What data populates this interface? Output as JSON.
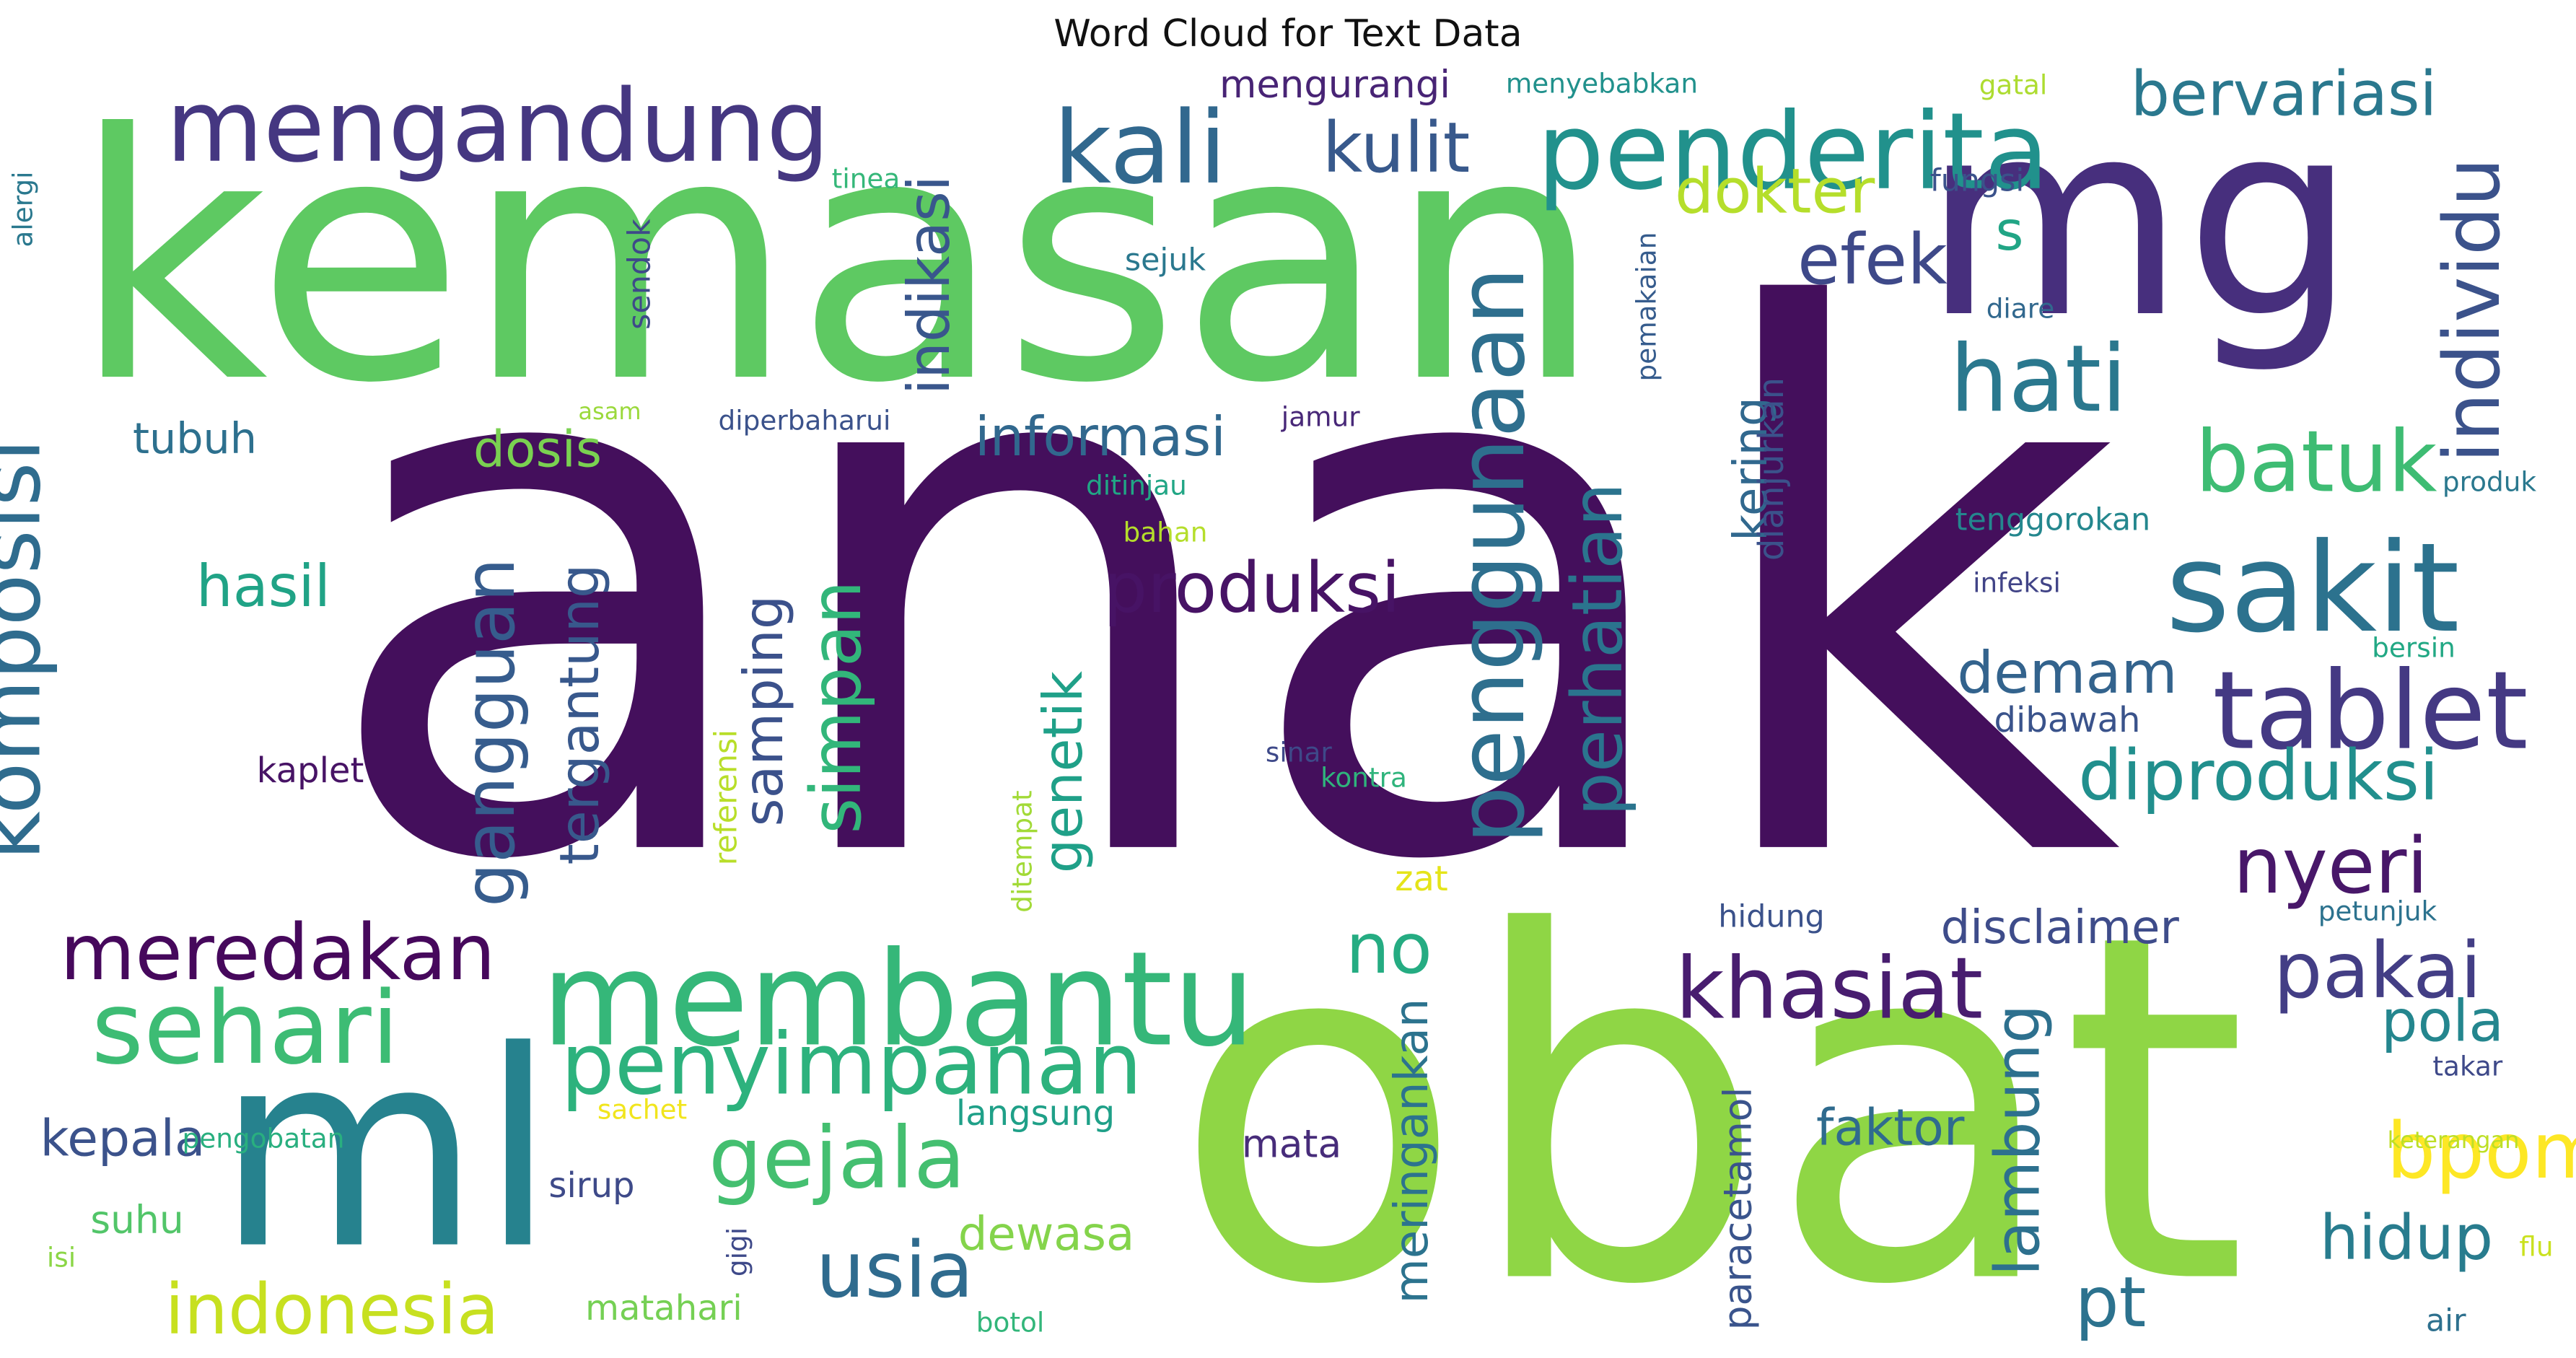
{
  "chart_data": {
    "type": "wordcloud",
    "title": "Word Cloud for Text Data",
    "palette": "viridis",
    "words": [
      {
        "text": "anak",
        "color": "#440f5c"
      },
      {
        "text": "obat",
        "color": "#8fd645"
      },
      {
        "text": "kemasan",
        "color": "#5ec962"
      },
      {
        "text": "mg",
        "color": "#472f7d"
      },
      {
        "text": "ml",
        "color": "#26828e"
      },
      {
        "text": "membantu",
        "color": "#35b779"
      },
      {
        "text": "mengandung",
        "color": "#453781"
      },
      {
        "text": "penderita",
        "color": "#21918c"
      },
      {
        "text": "sakit",
        "color": "#2c728e"
      },
      {
        "text": "kali",
        "color": "#31688e"
      },
      {
        "text": "tablet",
        "color": "#443983"
      },
      {
        "text": "hati",
        "color": "#2a788e"
      },
      {
        "text": "sehari",
        "color": "#3dbc74"
      },
      {
        "text": "khasiat",
        "color": "#481d6f"
      },
      {
        "text": "gejala",
        "color": "#44bf70"
      },
      {
        "text": "penyimpanan",
        "color": "#2db27d"
      },
      {
        "text": "batuk",
        "color": "#3ebc73"
      },
      {
        "text": "nyeri",
        "color": "#481769"
      },
      {
        "text": "meredakan",
        "color": "#46085c"
      },
      {
        "text": "usia",
        "color": "#2f6b8e"
      },
      {
        "text": "indonesia",
        "color": "#c7e020"
      },
      {
        "text": "bpom",
        "color": "#fde725"
      },
      {
        "text": "pakai",
        "color": "#433e85"
      },
      {
        "text": "kulit",
        "color": "#38598c"
      },
      {
        "text": "efek",
        "color": "#3e4989"
      },
      {
        "text": "komposisi",
        "color": "#2f6c8e"
      },
      {
        "text": "produksi",
        "color": "#471365"
      },
      {
        "text": "penggunaan",
        "color": "#2e6f8e"
      },
      {
        "text": "dokter",
        "color": "#b5de2b"
      },
      {
        "text": "bervariasi",
        "color": "#2a788e"
      },
      {
        "text": "individu",
        "color": "#3b528b"
      },
      {
        "text": "diproduksi",
        "color": "#218f8d"
      },
      {
        "text": "no",
        "color": "#25ac82"
      },
      {
        "text": "pt",
        "color": "#2c728e"
      },
      {
        "text": "hidup",
        "color": "#287c8e"
      },
      {
        "text": "simpan",
        "color": "#32b67a"
      },
      {
        "text": "gangguan",
        "color": "#365c8d"
      },
      {
        "text": "tergantung",
        "color": "#38588c"
      },
      {
        "text": "perhatian",
        "color": "#2b748e"
      },
      {
        "text": "demam",
        "color": "#33638d"
      },
      {
        "text": "lambung",
        "color": "#2d708e"
      },
      {
        "text": "pola",
        "color": "#24868e"
      },
      {
        "text": "indikasi",
        "color": "#39568c"
      },
      {
        "text": "hasil",
        "color": "#20a386"
      },
      {
        "text": "samping",
        "color": "#3b518b"
      },
      {
        "text": "genetik",
        "color": "#1fa088"
      },
      {
        "text": "informasi",
        "color": "#31688e"
      },
      {
        "text": "dosis",
        "color": "#7ad151"
      },
      {
        "text": "tubuh",
        "color": "#2d708e"
      },
      {
        "text": "s",
        "color": "#21a585"
      },
      {
        "text": "kering",
        "color": "#31688e"
      },
      {
        "text": "disclaimer",
        "color": "#3e4c8a"
      },
      {
        "text": "kepala",
        "color": "#3b528b"
      },
      {
        "text": "faktor",
        "color": "#2f6b8e"
      },
      {
        "text": "dewasa",
        "color": "#84d44b"
      },
      {
        "text": "meringankan",
        "color": "#2c738e"
      },
      {
        "text": "mengurangi",
        "color": "#482475"
      },
      {
        "text": "mata",
        "color": "#472c7a"
      },
      {
        "text": "suhu",
        "color": "#52c569"
      },
      {
        "text": "langsung",
        "color": "#1fa088"
      },
      {
        "text": "matahari",
        "color": "#75d054"
      },
      {
        "text": "sirup",
        "color": "#3e4a89"
      },
      {
        "text": "paracetamol",
        "color": "#3a548c"
      },
      {
        "text": "dibawah",
        "color": "#3a538b"
      },
      {
        "text": "tenggorokan",
        "color": "#24878e"
      },
      {
        "text": "dianjurkan",
        "color": "#3b528b"
      },
      {
        "text": "menyebabkan",
        "color": "#21918c"
      },
      {
        "text": "sejuk",
        "color": "#2a788e"
      },
      {
        "text": "sendok",
        "color": "#3e4a89"
      },
      {
        "text": "fungsi",
        "color": "#3b528b"
      },
      {
        "text": "tinea",
        "color": "#35b779"
      },
      {
        "text": "alergi",
        "color": "#2a788e"
      },
      {
        "text": "gatal",
        "color": "#addc30"
      },
      {
        "text": "pemakaian",
        "color": "#365c8d"
      },
      {
        "text": "diare",
        "color": "#31688e"
      },
      {
        "text": "asam",
        "color": "#9bd93c"
      },
      {
        "text": "diperbaharui",
        "color": "#3b528b"
      },
      {
        "text": "jamur",
        "color": "#482878"
      },
      {
        "text": "ditinjau",
        "color": "#21a685"
      },
      {
        "text": "bahan",
        "color": "#b5de2b"
      },
      {
        "text": "produk",
        "color": "#2a788e"
      },
      {
        "text": "infeksi",
        "color": "#414487"
      },
      {
        "text": "bersin",
        "color": "#22a884"
      },
      {
        "text": "kaplet",
        "color": "#471365"
      },
      {
        "text": "sinar",
        "color": "#3e4989"
      },
      {
        "text": "kontra",
        "color": "#2fb47c"
      },
      {
        "text": "referensi",
        "color": "#b8de29"
      },
      {
        "text": "ditempat",
        "color": "#a2da37"
      },
      {
        "text": "zat",
        "color": "#e5e419"
      },
      {
        "text": "hidung",
        "color": "#3b528b"
      },
      {
        "text": "petunjuk",
        "color": "#2c728e"
      },
      {
        "text": "takar",
        "color": "#3e4989"
      },
      {
        "text": "keterangan",
        "color": "#bddf26"
      },
      {
        "text": "pengobatan",
        "color": "#29af7f"
      },
      {
        "text": "sachet",
        "color": "#f1e51d"
      },
      {
        "text": "gigi",
        "color": "#3e4989"
      },
      {
        "text": "isi",
        "color": "#8bd646"
      },
      {
        "text": "botol",
        "color": "#32b67a"
      },
      {
        "text": "flu",
        "color": "#cae11f"
      },
      {
        "text": "air",
        "color": "#2d708e"
      }
    ]
  }
}
